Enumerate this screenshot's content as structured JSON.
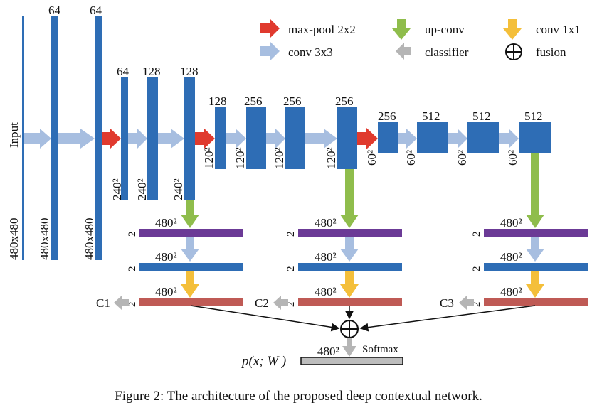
{
  "legend": {
    "maxpool": "max-pool 2x2",
    "upconv": "up-conv",
    "conv1x1": "conv 1x1",
    "conv3x3": "conv 3x3",
    "classifier": "classifier",
    "fusion": "fusion"
  },
  "colors": {
    "conv_block": "#2e6db5",
    "conv3x3_arrow": "#a7bee0",
    "maxpool_arrow": "#e03a2e",
    "upconv_arrow": "#8fbd4c",
    "conv1x1_arrow": "#f4bf3a",
    "classifier_arrow": "#b5b5b5",
    "upconv_bar": "#6b3a96",
    "conv_bar": "#2e6db5",
    "classifier_bar": "#bf5a55",
    "output_bar": "#bdbdbd"
  },
  "input_label": "Input",
  "stage1": {
    "channels": [
      "64",
      "64"
    ],
    "sizes": [
      "480x480",
      "480x480",
      "480x480"
    ]
  },
  "stage2": {
    "channels": [
      "64",
      "128",
      "128"
    ],
    "sizes": [
      "240²",
      "240²",
      "240²"
    ]
  },
  "stage3": {
    "channels": [
      "128",
      "256",
      "256",
      "256"
    ],
    "sizes": [
      "120²",
      "120²",
      "120²",
      "120²"
    ]
  },
  "stage4": {
    "channels": [
      "256",
      "512",
      "512",
      "512"
    ],
    "sizes": [
      "60²",
      "60²",
      "60²",
      "60²"
    ]
  },
  "branches": {
    "res": "480²",
    "ch": "2",
    "classes": [
      "C1",
      "C2",
      "C3"
    ]
  },
  "output": {
    "label": "p(x; W )",
    "res": "480²",
    "softmax": "Softmax"
  },
  "caption": "Figure 2: The architecture of the proposed deep contextual network."
}
